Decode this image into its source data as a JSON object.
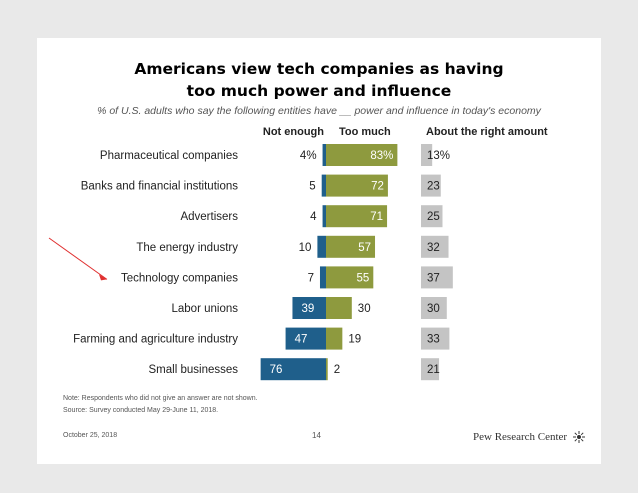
{
  "slide": {
    "title_line1": "Americans view tech companies as having",
    "title_line2": "too much power and influence",
    "subtitle": "% of U.S. adults who say the following entities have __ power and influence in today's economy",
    "note": "Note: Respondents who did not give an answer are not shown.",
    "source": "Source: Survey conducted May 29-June 11, 2018.",
    "date": "October 25, 2018",
    "page_number": "14",
    "brand": "Pew Research Center"
  },
  "colors": {
    "not_enough": "#1f5f8b",
    "too_much": "#8e9a3e",
    "about_right": "#c4c4c4"
  },
  "chart_data": {
    "type": "bar",
    "orientation": "horizontal-diverging",
    "series_labels": {
      "not_enough": "Not enough",
      "too_much": "Too much",
      "about_right": "About the right amount"
    },
    "rows": [
      {
        "category": "Pharmaceutical companies",
        "not_enough": 4,
        "not_enough_label": "4%",
        "too_much": 83,
        "too_much_label": "83%",
        "about_right": 13,
        "about_right_label": "13%"
      },
      {
        "category": "Banks and financial institutions",
        "not_enough": 5,
        "not_enough_label": "5",
        "too_much": 72,
        "too_much_label": "72",
        "about_right": 23,
        "about_right_label": "23"
      },
      {
        "category": "Advertisers",
        "not_enough": 4,
        "not_enough_label": "4",
        "too_much": 71,
        "too_much_label": "71",
        "about_right": 25,
        "about_right_label": "25"
      },
      {
        "category": "The energy industry",
        "not_enough": 10,
        "not_enough_label": "10",
        "too_much": 57,
        "too_much_label": "57",
        "about_right": 32,
        "about_right_label": "32"
      },
      {
        "category": "Technology companies",
        "not_enough": 7,
        "not_enough_label": "7",
        "too_much": 55,
        "too_much_label": "55",
        "about_right": 37,
        "about_right_label": "37",
        "highlighted": true
      },
      {
        "category": "Labor unions",
        "not_enough": 39,
        "not_enough_label": "39",
        "too_much": 30,
        "too_much_label": "30",
        "about_right": 30,
        "about_right_label": "30"
      },
      {
        "category": "Farming and agriculture industry",
        "not_enough": 47,
        "not_enough_label": "47",
        "too_much": 19,
        "too_much_label": "19",
        "about_right": 33,
        "about_right_label": "33"
      },
      {
        "category": "Small businesses",
        "not_enough": 76,
        "not_enough_label": "76",
        "too_much": 2,
        "too_much_label": "2",
        "about_right": 21,
        "about_right_label": "21"
      }
    ]
  }
}
